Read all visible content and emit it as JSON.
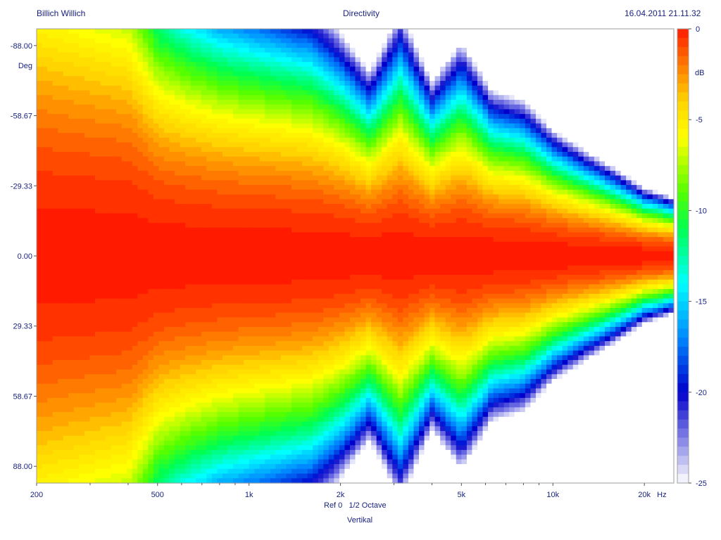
{
  "header": {
    "left": "Billich Willich",
    "center": "Directivity",
    "right": "16.04.2011 21.11.32"
  },
  "chart_data": {
    "type": "heatmap",
    "title": "Directivity",
    "xlabel": "Ref 0   1/2 Octave",
    "xlabel2": "Vertikal",
    "ylabel": "Deg",
    "colorbar_label": "dB",
    "x_scale": "log",
    "xlim": [
      200,
      25000
    ],
    "ylim": [
      -95,
      95
    ],
    "x_ticks": [
      {
        "value": 200,
        "label": "200"
      },
      {
        "value": 500,
        "label": "500"
      },
      {
        "value": 1000,
        "label": "1k"
      },
      {
        "value": 2000,
        "label": "2k"
      },
      {
        "value": 5000,
        "label": "5k"
      },
      {
        "value": 10000,
        "label": "10k"
      },
      {
        "value": 20000,
        "label": "20k"
      }
    ],
    "x_unit": "Hz",
    "y_ticks": [
      {
        "value": -88,
        "label": "-88.00"
      },
      {
        "value": -58.67,
        "label": "-58.67"
      },
      {
        "value": -29.33,
        "label": "-29.33"
      },
      {
        "value": 0,
        "label": "0.00"
      },
      {
        "value": 29.33,
        "label": "29.33"
      },
      {
        "value": 58.67,
        "label": "58.67"
      },
      {
        "value": 88,
        "label": "88.00"
      }
    ],
    "color_range": [
      -25,
      0
    ],
    "color_ticks": [
      "0",
      "-5",
      "-10",
      "-15",
      "-20",
      "-25"
    ],
    "colors": {
      "0": "#ff1a00",
      "-2": "#ff7a00",
      "-4": "#ffd400",
      "-6": "#ffff00",
      "-9": "#55ff00",
      "-11": "#00ff50",
      "-14": "#00ffff",
      "-17": "#0088ff",
      "-20": "#0000cc",
      "-25": "#ffffff"
    },
    "beamwidth_freqs": [
      200,
      250,
      315,
      400,
      500,
      630,
      800,
      1000,
      1250,
      1600,
      2000,
      2500,
      3150,
      4000,
      5000,
      6300,
      8000,
      10000,
      12500,
      16000,
      20000,
      25000
    ],
    "beamwidth_angles": [
      100,
      96,
      92,
      88,
      68,
      62,
      58,
      56,
      54,
      52,
      46,
      38,
      50,
      36,
      44,
      34,
      32,
      26,
      22,
      18,
      14,
      12
    ]
  }
}
